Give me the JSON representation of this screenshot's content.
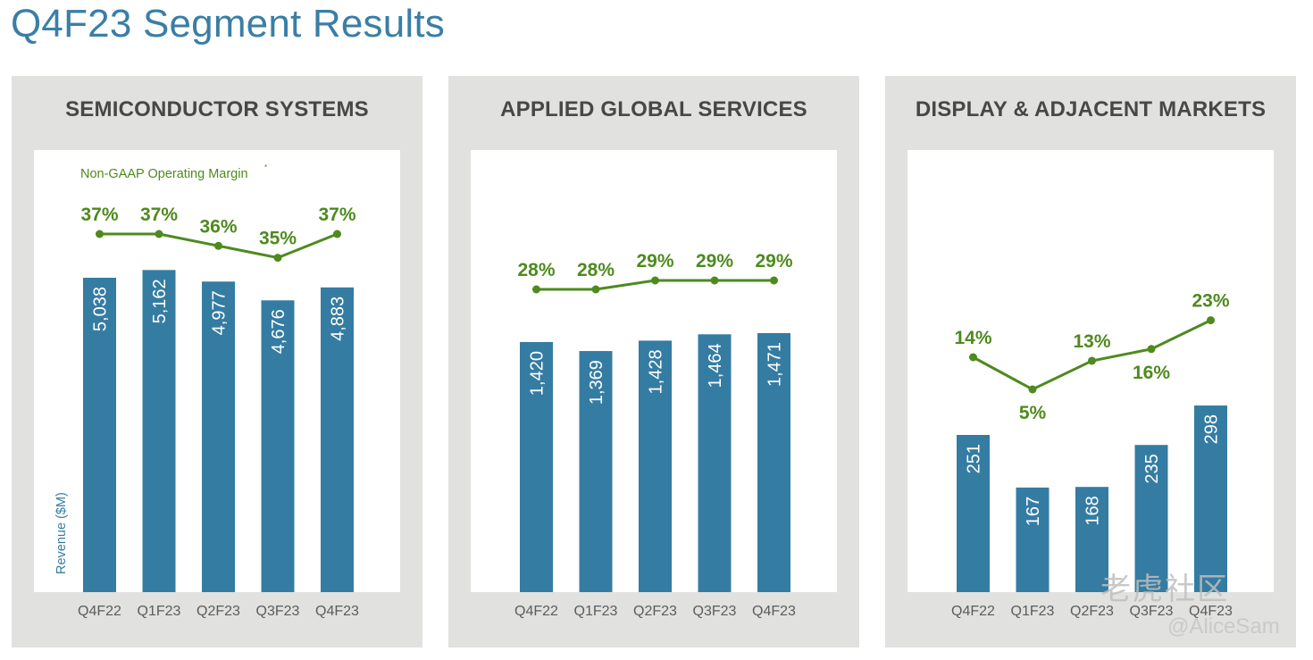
{
  "title": "Q4F23 Segment Results",
  "legend": {
    "text": "Non-GAAP Operating Margin",
    "superscript": "*"
  },
  "ylabel": "Revenue ($M)",
  "watermark": {
    "logo": "老虎社区",
    "handle": "@AliceSam"
  },
  "colors": {
    "bar": "#357ca3",
    "margin_line": "#4e8a1e",
    "panel_bg": "#e1e1df",
    "title": "#3a7ea6"
  },
  "chart_data": [
    {
      "type": "bar",
      "title": "SEMICONDUCTOR SYSTEMS",
      "categories": [
        "Q4F22",
        "Q1F23",
        "Q2F23",
        "Q3F23",
        "Q4F23"
      ],
      "values": [
        5038,
        5162,
        4977,
        4676,
        4883
      ],
      "value_labels": [
        "5,038",
        "5,162",
        "4,977",
        "4,676",
        "4,883"
      ],
      "ylabel": "Revenue ($M)",
      "series": [
        {
          "name": "Revenue ($M)",
          "values": [
            5038,
            5162,
            4977,
            4676,
            4883
          ]
        },
        {
          "name": "Non-GAAP Operating Margin",
          "type": "line",
          "values": [
            37,
            37,
            36,
            35,
            37
          ],
          "labels": [
            "37%",
            "37%",
            "36%",
            "35%",
            "37%"
          ]
        }
      ]
    },
    {
      "type": "bar",
      "title": "APPLIED GLOBAL SERVICES",
      "categories": [
        "Q4F22",
        "Q1F23",
        "Q2F23",
        "Q3F23",
        "Q4F23"
      ],
      "values": [
        1420,
        1369,
        1428,
        1464,
        1471
      ],
      "value_labels": [
        "1,420",
        "1,369",
        "1,428",
        "1,464",
        "1,471"
      ],
      "series": [
        {
          "name": "Revenue ($M)",
          "values": [
            1420,
            1369,
            1428,
            1464,
            1471
          ]
        },
        {
          "name": "Non-GAAP Operating Margin",
          "type": "line",
          "values": [
            28,
            28,
            29,
            29,
            29
          ],
          "labels": [
            "28%",
            "28%",
            "29%",
            "29%",
            "29%"
          ]
        }
      ]
    },
    {
      "type": "bar",
      "title": "DISPLAY & ADJACENT MARKETS",
      "categories": [
        "Q4F22",
        "Q1F23",
        "Q2F23",
        "Q3F23",
        "Q4F23"
      ],
      "values": [
        251,
        167,
        168,
        235,
        298
      ],
      "value_labels": [
        "251",
        "167",
        "168",
        "235",
        "298"
      ],
      "series": [
        {
          "name": "Revenue ($M)",
          "values": [
            251,
            167,
            168,
            235,
            298
          ]
        },
        {
          "name": "Non-GAAP Operating Margin",
          "type": "line",
          "values": [
            14,
            5,
            13,
            16,
            23
          ],
          "labels": [
            "14%",
            "5%",
            "13%",
            "16%",
            "23%"
          ]
        }
      ]
    }
  ]
}
